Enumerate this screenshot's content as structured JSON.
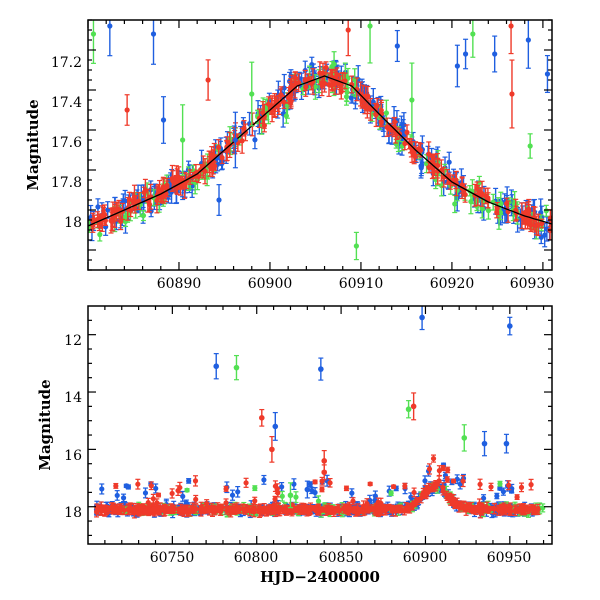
{
  "chart_data": [
    {
      "type": "scatter",
      "panel": "top",
      "title": "",
      "xlabel": "",
      "ylabel": "Magnitude",
      "xlim": [
        60880,
        60931
      ],
      "ylim": [
        18.3,
        17.05
      ],
      "y_inverted": true,
      "xticks": [
        60890,
        60900,
        60910,
        60920,
        60930
      ],
      "yticks": [
        17.2,
        17.4,
        17.6,
        17.8,
        18
      ],
      "ytick_labels": [
        "17.2",
        "17.4",
        "17.6",
        "17.8",
        "18"
      ],
      "series": [
        {
          "name": "blue",
          "color": "#1f5fe0"
        },
        {
          "name": "red",
          "color": "#ef3a2a"
        },
        {
          "name": "green",
          "color": "#52e052"
        }
      ],
      "model_curve": {
        "color": "#000000",
        "x": [
          60880,
          60884,
          60888,
          60892,
          60896,
          60900,
          60903,
          60906,
          60909,
          60912,
          60916,
          60920,
          60924,
          60928,
          60931
        ],
        "y": [
          18.08,
          18.0,
          17.92,
          17.82,
          17.66,
          17.5,
          17.38,
          17.33,
          17.38,
          17.52,
          17.7,
          17.86,
          17.96,
          18.03,
          18.07
        ]
      },
      "outliers": [
        {
          "series": "green",
          "x": 60880.6,
          "y": 17.12
        },
        {
          "series": "blue",
          "x": 60882.4,
          "y": 17.08
        },
        {
          "series": "red",
          "x": 60884.3,
          "y": 17.5
        },
        {
          "series": "blue",
          "x": 60887.2,
          "y": 17.12
        },
        {
          "series": "blue",
          "x": 60888.3,
          "y": 17.55
        },
        {
          "series": "green",
          "x": 60890.4,
          "y": 17.65
        },
        {
          "series": "red",
          "x": 60893.2,
          "y": 17.35
        },
        {
          "series": "blue",
          "x": 60894.4,
          "y": 17.95
        },
        {
          "series": "blue",
          "x": 60896.2,
          "y": 17.65
        },
        {
          "series": "green",
          "x": 60898.0,
          "y": 17.42
        },
        {
          "series": "red",
          "x": 60908.6,
          "y": 17.1
        },
        {
          "series": "green",
          "x": 60911.0,
          "y": 17.08
        },
        {
          "series": "blue",
          "x": 60914.0,
          "y": 17.18
        },
        {
          "series": "green",
          "x": 60915.6,
          "y": 17.45
        },
        {
          "series": "green",
          "x": 60909.5,
          "y": 18.18
        },
        {
          "series": "blue",
          "x": 60920.6,
          "y": 17.28
        },
        {
          "series": "blue",
          "x": 60921.5,
          "y": 17.22
        },
        {
          "series": "green",
          "x": 60922.3,
          "y": 17.12
        },
        {
          "series": "blue",
          "x": 60924.7,
          "y": 17.22
        },
        {
          "series": "red",
          "x": 60926.5,
          "y": 17.08
        },
        {
          "series": "red",
          "x": 60926.6,
          "y": 17.42
        },
        {
          "series": "blue",
          "x": 60928.4,
          "y": 17.15
        },
        {
          "series": "green",
          "x": 60928.6,
          "y": 17.68
        },
        {
          "series": "blue",
          "x": 60930.5,
          "y": 17.32
        }
      ]
    },
    {
      "type": "scatter",
      "panel": "bottom",
      "title": "",
      "xlabel": "HJD−2400000",
      "ylabel": "Magnitude",
      "xlim": [
        60700,
        60975
      ],
      "ylim": [
        19.3,
        11.0
      ],
      "y_inverted": true,
      "xticks": [
        60750,
        60800,
        60850,
        60900,
        60950
      ],
      "yticks": [
        12,
        14,
        16,
        18
      ],
      "ytick_labels": [
        "12",
        "14",
        "16",
        "18"
      ],
      "series": [
        {
          "name": "blue",
          "color": "#1f5fe0"
        },
        {
          "name": "red",
          "color": "#ef3a2a"
        },
        {
          "name": "green",
          "color": "#52e052"
        }
      ],
      "baseline_mag": 18.1,
      "outburst": {
        "peak_x": 60906,
        "peak_mag": 17.3
      },
      "outliers": [
        {
          "series": "blue",
          "x": 60776,
          "y": 13.1
        },
        {
          "series": "green",
          "x": 60788,
          "y": 13.15
        },
        {
          "series": "red",
          "x": 60803,
          "y": 14.9
        },
        {
          "series": "blue",
          "x": 60811,
          "y": 15.2
        },
        {
          "series": "red",
          "x": 60809,
          "y": 16.0
        },
        {
          "series": "blue",
          "x": 60838,
          "y": 13.2
        },
        {
          "series": "red",
          "x": 60840,
          "y": 16.4
        },
        {
          "series": "green",
          "x": 60890,
          "y": 14.6
        },
        {
          "series": "red",
          "x": 60893,
          "y": 14.5
        },
        {
          "series": "blue",
          "x": 60898,
          "y": 11.4
        },
        {
          "series": "green",
          "x": 60923,
          "y": 15.6
        },
        {
          "series": "blue",
          "x": 60935,
          "y": 15.8
        },
        {
          "series": "blue",
          "x": 60950,
          "y": 11.7
        },
        {
          "series": "blue",
          "x": 60948,
          "y": 15.8
        },
        {
          "series": "red",
          "x": 60840,
          "y": 16.8
        },
        {
          "series": "green",
          "x": 60820,
          "y": 17.6
        },
        {
          "series": "blue",
          "x": 60830,
          "y": 17.4
        }
      ]
    }
  ]
}
